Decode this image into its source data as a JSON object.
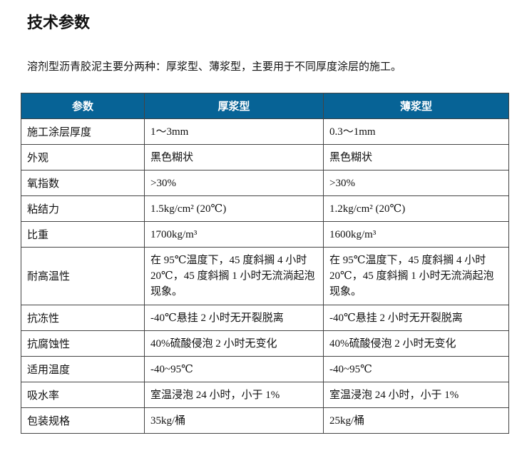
{
  "title": "技术参数",
  "intro": "溶剂型沥青胶泥主要分两种：厚浆型、薄浆型，主要用于不同厚度涂层的施工。",
  "table": {
    "headers": [
      "参数",
      "厚浆型",
      "薄浆型"
    ],
    "rows": [
      [
        "施工涂层厚度",
        "1～3mm",
        "0.3～1mm"
      ],
      [
        "外观",
        "黑色糊状",
        "黑色糊状"
      ],
      [
        "氧指数",
        ">30%",
        ">30%"
      ],
      [
        "粘结力",
        "1.5kg/cm² (20℃)",
        "1.2kg/cm² (20℃)"
      ],
      [
        "比重",
        "1700kg/m³",
        "1600kg/m³"
      ],
      [
        "耐高温性",
        "在 95℃温度下，45 度斜搁 4 小时 20℃，45 度斜搁 1 小时无流淌起泡现象。",
        "在 95℃温度下，45 度斜搁 4 小时 20℃，45 度斜搁 1 小时无流淌起泡现象。"
      ],
      [
        "抗冻性",
        "-40℃悬挂 2 小时无开裂脱离",
        "-40℃悬挂 2 小时无开裂脱离"
      ],
      [
        "抗腐蚀性",
        "40%硫酸侵泡 2 小时无变化",
        "40%硫酸侵泡 2 小时无变化"
      ],
      [
        "适用温度",
        "-40~95℃",
        "-40~95℃"
      ],
      [
        "吸水率",
        "室温浸泡 24 小时，小于 1%",
        "室温浸泡 24 小时，小于 1%"
      ],
      [
        "包装规格",
        "35kg/桶",
        "25kg/桶"
      ]
    ]
  },
  "colors": {
    "header_bg": "#076396",
    "header_text": "#ffffff"
  }
}
